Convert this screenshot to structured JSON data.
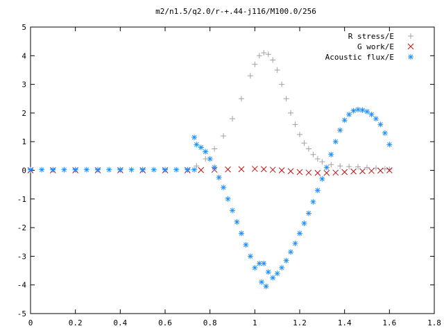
{
  "chart_data": {
    "type": "scatter",
    "title": "m2/n1.5/q2.0/r-+.44-j116/M100.0/256",
    "xlabel": "",
    "ylabel": "",
    "xlim": [
      0,
      1.8
    ],
    "ylim": [
      -5,
      5
    ],
    "xticks": [
      "0",
      "0.2",
      "0.4",
      "0.6",
      "0.8",
      "1",
      "1.2",
      "1.4",
      "1.6",
      "1.8"
    ],
    "yticks": [
      "5",
      "4",
      "3",
      "2",
      "1",
      "0",
      "-1",
      "-2",
      "-3",
      "-4",
      "-5"
    ],
    "legend_position": "top-right",
    "grid": false,
    "series": [
      {
        "name": "R stress/E",
        "marker": "+",
        "color": "#a0a0a0",
        "points": [
          [
            0.0,
            0.02
          ],
          [
            0.1,
            0.02
          ],
          [
            0.2,
            0.02
          ],
          [
            0.3,
            0.02
          ],
          [
            0.4,
            0.02
          ],
          [
            0.5,
            0.02
          ],
          [
            0.6,
            0.02
          ],
          [
            0.7,
            0.02
          ],
          [
            0.74,
            0.15
          ],
          [
            0.78,
            0.4
          ],
          [
            0.82,
            0.75
          ],
          [
            0.86,
            1.2
          ],
          [
            0.9,
            1.8
          ],
          [
            0.94,
            2.5
          ],
          [
            0.98,
            3.3
          ],
          [
            1.0,
            3.7
          ],
          [
            1.02,
            4.0
          ],
          [
            1.04,
            4.1
          ],
          [
            1.06,
            4.05
          ],
          [
            1.08,
            3.85
          ],
          [
            1.1,
            3.5
          ],
          [
            1.12,
            3.0
          ],
          [
            1.14,
            2.5
          ],
          [
            1.16,
            2.0
          ],
          [
            1.18,
            1.6
          ],
          [
            1.2,
            1.25
          ],
          [
            1.22,
            0.95
          ],
          [
            1.24,
            0.75
          ],
          [
            1.26,
            0.55
          ],
          [
            1.28,
            0.4
          ],
          [
            1.3,
            0.3
          ],
          [
            1.34,
            0.2
          ],
          [
            1.38,
            0.15
          ],
          [
            1.42,
            0.13
          ],
          [
            1.46,
            0.12
          ],
          [
            1.5,
            0.1
          ],
          [
            1.54,
            0.08
          ],
          [
            1.58,
            0.05
          ],
          [
            1.6,
            0.04
          ]
        ]
      },
      {
        "name": "G work/E",
        "marker": "x",
        "color": "#c01010",
        "points": [
          [
            0.0,
            0.0
          ],
          [
            0.1,
            0.0
          ],
          [
            0.2,
            0.0
          ],
          [
            0.3,
            0.0
          ],
          [
            0.4,
            0.0
          ],
          [
            0.5,
            0.0
          ],
          [
            0.6,
            0.0
          ],
          [
            0.7,
            0.0
          ],
          [
            0.76,
            0.01
          ],
          [
            0.82,
            0.02
          ],
          [
            0.88,
            0.03
          ],
          [
            0.94,
            0.04
          ],
          [
            1.0,
            0.05
          ],
          [
            1.04,
            0.04
          ],
          [
            1.08,
            0.02
          ],
          [
            1.12,
            0.0
          ],
          [
            1.16,
            -0.03
          ],
          [
            1.2,
            -0.06
          ],
          [
            1.24,
            -0.08
          ],
          [
            1.28,
            -0.09
          ],
          [
            1.32,
            -0.09
          ],
          [
            1.36,
            -0.08
          ],
          [
            1.4,
            -0.06
          ],
          [
            1.44,
            -0.04
          ],
          [
            1.48,
            -0.03
          ],
          [
            1.52,
            -0.02
          ],
          [
            1.56,
            -0.01
          ],
          [
            1.6,
            0.0
          ]
        ]
      },
      {
        "name": "Acoustic flux/E",
        "marker": "*",
        "color": "#1e90ff",
        "points": [
          [
            0.0,
            0.02
          ],
          [
            0.05,
            0.02
          ],
          [
            0.1,
            0.02
          ],
          [
            0.15,
            0.02
          ],
          [
            0.2,
            0.02
          ],
          [
            0.25,
            0.02
          ],
          [
            0.3,
            0.02
          ],
          [
            0.35,
            0.02
          ],
          [
            0.4,
            0.02
          ],
          [
            0.45,
            0.02
          ],
          [
            0.5,
            0.02
          ],
          [
            0.55,
            0.02
          ],
          [
            0.6,
            0.02
          ],
          [
            0.65,
            0.02
          ],
          [
            0.7,
            0.02
          ],
          [
            0.73,
            0.02
          ],
          [
            0.73,
            1.15
          ],
          [
            0.74,
            0.9
          ],
          [
            0.76,
            0.8
          ],
          [
            0.78,
            0.65
          ],
          [
            0.8,
            0.4
          ],
          [
            0.82,
            0.1
          ],
          [
            0.84,
            -0.25
          ],
          [
            0.86,
            -0.6
          ],
          [
            0.88,
            -1.0
          ],
          [
            0.9,
            -1.4
          ],
          [
            0.92,
            -1.8
          ],
          [
            0.94,
            -2.2
          ],
          [
            0.96,
            -2.6
          ],
          [
            0.98,
            -3.0
          ],
          [
            1.0,
            -3.4
          ],
          [
            1.02,
            -3.25
          ],
          [
            1.04,
            -3.25
          ],
          [
            1.06,
            -3.55
          ],
          [
            1.08,
            -3.75
          ],
          [
            1.05,
            -4.05
          ],
          [
            1.03,
            -3.9
          ],
          [
            1.1,
            -3.6
          ],
          [
            1.12,
            -3.4
          ],
          [
            1.14,
            -3.15
          ],
          [
            1.16,
            -2.85
          ],
          [
            1.18,
            -2.55
          ],
          [
            1.2,
            -2.2
          ],
          [
            1.22,
            -1.85
          ],
          [
            1.24,
            -1.5
          ],
          [
            1.26,
            -1.1
          ],
          [
            1.28,
            -0.7
          ],
          [
            1.3,
            -0.3
          ],
          [
            1.32,
            0.1
          ],
          [
            1.34,
            0.55
          ],
          [
            1.36,
            1.0
          ],
          [
            1.38,
            1.4
          ],
          [
            1.4,
            1.75
          ],
          [
            1.42,
            1.95
          ],
          [
            1.44,
            2.08
          ],
          [
            1.46,
            2.12
          ],
          [
            1.48,
            2.1
          ],
          [
            1.5,
            2.05
          ],
          [
            1.52,
            1.95
          ],
          [
            1.54,
            1.8
          ],
          [
            1.56,
            1.6
          ],
          [
            1.58,
            1.3
          ],
          [
            1.6,
            0.9
          ]
        ]
      }
    ]
  }
}
